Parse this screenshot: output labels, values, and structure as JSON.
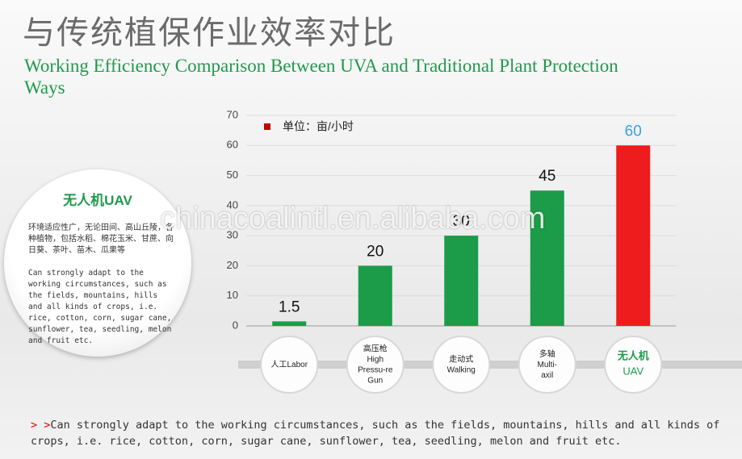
{
  "header": {
    "title": "与传统植保作业效率对比",
    "subtitle": "Working Efficiency Comparison Between UVA and Traditional Plant Protection Ways"
  },
  "side_panel": {
    "heading": "无人机UAV",
    "text_zh": "环境适应性广，无论田间、高山丘陵，各种植物，包括水稻、棉花玉米、甘蔗、向日葵、茶叶、苗木、瓜果等",
    "text_en": "Can strongly adapt to the working circumstances, such as the fields, mountains, hills and all kinds of crops, i.e. rice, cotton, corn, sugar cane, sunflower, tea, seedling, melon and fruit etc."
  },
  "footer": {
    "marker": "> >",
    "text": "Can strongly adapt to the working circumstances, such as the fields, mountains, hills and all kinds of crops, i.e. rice, cotton, corn, sugar cane, sunflower, tea, seedling, melon and fruit etc."
  },
  "watermark": "chinacoalintl.en.alibaba.com",
  "chart_data": {
    "type": "bar",
    "categories": [
      "人工Labor",
      "高压枪\nHigh\nPressu-re\nGun",
      "走动式\nWalking",
      "多轴\nMulti-\naxil",
      "无人机\nUAV"
    ],
    "series": [
      {
        "name": "单位：亩/小时",
        "color": "#c00000",
        "values": [
          1.5,
          20,
          30,
          45,
          60
        ],
        "colors": [
          "#1c9b48",
          "#1c9b48",
          "#1c9b48",
          "#1c9b48",
          "#ee1c1c"
        ],
        "label_colors": [
          "#111",
          "#111",
          "#111",
          "#111",
          "#3aa0e0"
        ]
      }
    ],
    "ylim": [
      0,
      70
    ],
    "yticks": [
      0,
      10,
      20,
      30,
      40,
      50,
      60,
      70
    ],
    "grid": true
  }
}
